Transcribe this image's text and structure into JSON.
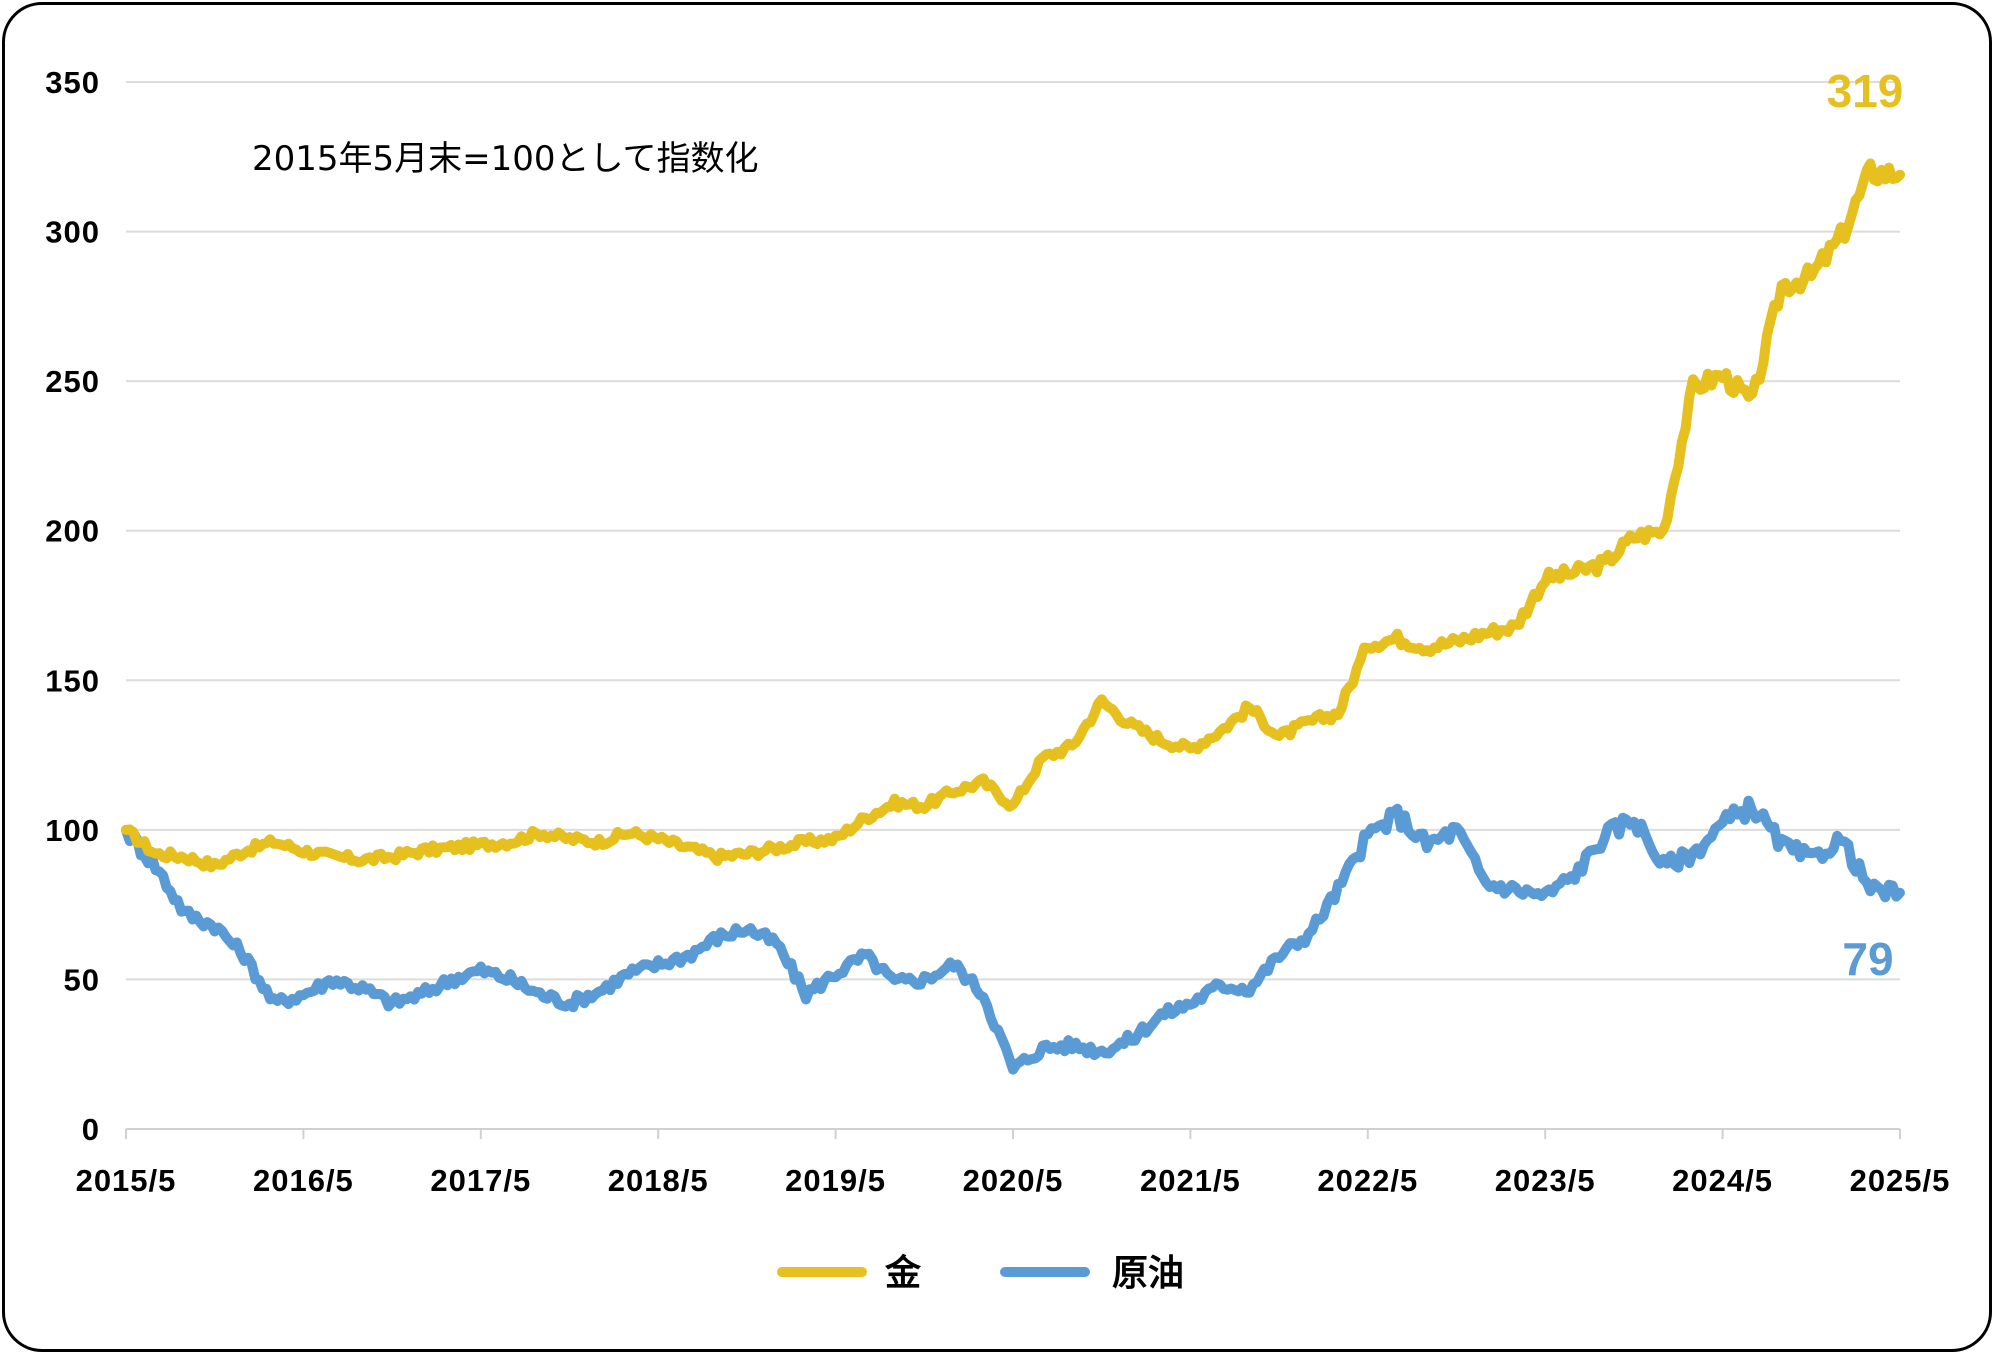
{
  "chart_data": {
    "type": "line",
    "title": "",
    "annotation": "2015年5月末=100として指数化",
    "xlabel": "",
    "ylabel": "",
    "ylim": [
      0,
      350
    ],
    "yticks": [
      0,
      50,
      100,
      150,
      200,
      250,
      300,
      350
    ],
    "xticks": [
      "2015/5",
      "2016/5",
      "2017/5",
      "2018/5",
      "2019/5",
      "2020/5",
      "2021/5",
      "2022/5",
      "2023/5",
      "2024/5",
      "2025/5"
    ],
    "grid": true,
    "legend_position": "bottom",
    "x_months_from_2015_05": [
      0,
      2,
      4,
      6,
      8,
      10,
      12,
      14,
      16,
      18,
      20,
      22,
      24,
      26,
      28,
      30,
      32,
      34,
      36,
      38,
      40,
      42,
      44,
      46,
      48,
      50,
      52,
      54,
      56,
      58,
      60,
      62,
      64,
      66,
      68,
      70,
      72,
      74,
      76,
      78,
      80,
      82,
      84,
      86,
      88,
      90,
      92,
      94,
      96,
      98,
      100,
      102,
      104,
      106,
      108,
      110,
      112,
      114,
      116,
      118,
      120
    ],
    "series": [
      {
        "name": "金",
        "color": "#E6C01E",
        "end_label": "319",
        "values": [
          100,
          92,
          91,
          88,
          93,
          96,
          93,
          91,
          90,
          91,
          93,
          94,
          95,
          96,
          99,
          97,
          96,
          99,
          97,
          94,
          91,
          92,
          94,
          96,
          97,
          104,
          109,
          108,
          113,
          116,
          108,
          124,
          128,
          143,
          135,
          130,
          127,
          133,
          141,
          131,
          136,
          139,
          162,
          164,
          161,
          163,
          166,
          168,
          184,
          186,
          189,
          198,
          200,
          248,
          252,
          243,
          282,
          285,
          298,
          320,
          319
        ]
      },
      {
        "name": "原油",
        "color": "#5B9BD5",
        "end_label": "79",
        "values": [
          100,
          88,
          72,
          68,
          58,
          42,
          45,
          50,
          47,
          42,
          45,
          50,
          53,
          50,
          45,
          42,
          46,
          52,
          55,
          58,
          64,
          67,
          62,
          45,
          52,
          58,
          49,
          50,
          55,
          45,
          20,
          27,
          28,
          26,
          30,
          38,
          42,
          48,
          47,
          58,
          65,
          80,
          98,
          105,
          95,
          100,
          82,
          80,
          78,
          85,
          98,
          104,
          88,
          92,
          102,
          108,
          95,
          90,
          97,
          80,
          79
        ]
      }
    ]
  },
  "legend": {
    "items": [
      {
        "label": "金",
        "color": "#E6C01E"
      },
      {
        "label": "原油",
        "color": "#5B9BD5"
      }
    ]
  }
}
